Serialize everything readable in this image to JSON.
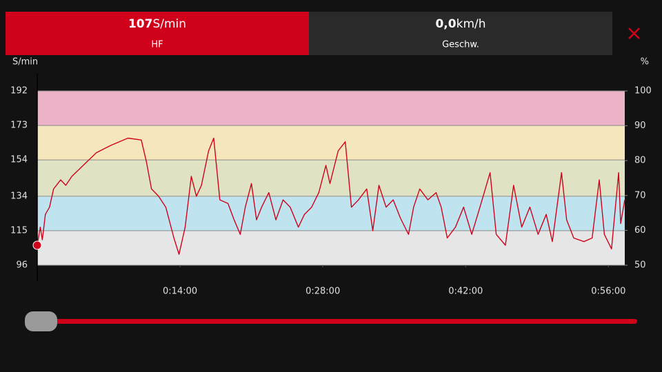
{
  "tabs": [
    {
      "value": "107",
      "unit": "S/min",
      "label": "HF",
      "active": true
    },
    {
      "value": "0,0",
      "unit": "km/h",
      "label": "Geschw.",
      "active": false
    }
  ],
  "chart_data": {
    "type": "line",
    "y_label": "S/min",
    "y2_label": "%",
    "color": "#d0021b",
    "x": [
      0,
      0.3,
      0.5,
      0.8,
      1.2,
      1.6,
      2.3,
      2.8,
      3.4,
      4.5,
      5.8,
      7.2,
      8.9,
      10.2,
      10.7,
      11.2,
      11.9,
      12.6,
      13.4,
      13.9,
      14.5,
      15.1,
      15.6,
      16.1,
      16.8,
      17.3,
      17.9,
      18.7,
      19.3,
      19.9,
      20.4,
      21.0,
      21.5,
      22.0,
      22.7,
      23.4,
      24.1,
      24.8,
      25.6,
      26.2,
      26.9,
      27.6,
      28.3,
      28.7,
      29.5,
      30.2,
      30.8,
      31.5,
      32.3,
      32.9,
      33.5,
      34.2,
      34.9,
      35.6,
      36.4,
      36.9,
      37.5,
      38.3,
      39.1,
      39.6,
      40.2,
      41.0,
      41.8,
      42.6,
      43.4,
      44.4,
      45.0,
      45.9,
      46.7,
      47.5,
      48.3,
      49.1,
      49.9,
      50.5,
      51.4,
      51.9,
      52.6,
      53.6,
      54.4,
      55.1,
      55.6,
      56.3,
      57.0,
      57.2,
      57.6
    ],
    "values": [
      107,
      117,
      110,
      124,
      128,
      138,
      143,
      140,
      145,
      151,
      158,
      162,
      166,
      165,
      153,
      138,
      134,
      128,
      111,
      102,
      117,
      145,
      134,
      140,
      159,
      166,
      132,
      130,
      121,
      113,
      128,
      141,
      121,
      128,
      136,
      121,
      132,
      128,
      117,
      124,
      128,
      136,
      151,
      141,
      159,
      164,
      128,
      132,
      138,
      115,
      140,
      128,
      132,
      122,
      113,
      128,
      138,
      132,
      136,
      128,
      111,
      117,
      128,
      113,
      128,
      147,
      113,
      107,
      140,
      117,
      128,
      113,
      124,
      109,
      147,
      121,
      111,
      109,
      111,
      143,
      113,
      105,
      147,
      119,
      132
    ],
    "xlim": [
      0,
      57.6
    ],
    "xticks": [
      {
        "value": 14,
        "label": "0:14:00"
      },
      {
        "value": 28,
        "label": "0:28:00"
      },
      {
        "value": 42,
        "label": "0:42:00"
      },
      {
        "value": 56,
        "label": "0:56:00"
      }
    ],
    "ylim": [
      96,
      192
    ],
    "yticks": [
      96,
      115,
      134,
      154,
      173,
      192
    ],
    "y2lim": [
      50,
      100
    ],
    "y2ticks": [
      50,
      60,
      70,
      80,
      90,
      100
    ],
    "zones": [
      {
        "from": 96,
        "to": 115,
        "color": "#e6e6e6"
      },
      {
        "from": 115,
        "to": 134,
        "color": "#bfe3ef"
      },
      {
        "from": 134,
        "to": 154,
        "color": "#dfe3c3"
      },
      {
        "from": 154,
        "to": 173,
        "color": "#f6e6bb"
      },
      {
        "from": 173,
        "to": 192,
        "color": "#ebb2c8"
      }
    ],
    "grid": true
  }
}
